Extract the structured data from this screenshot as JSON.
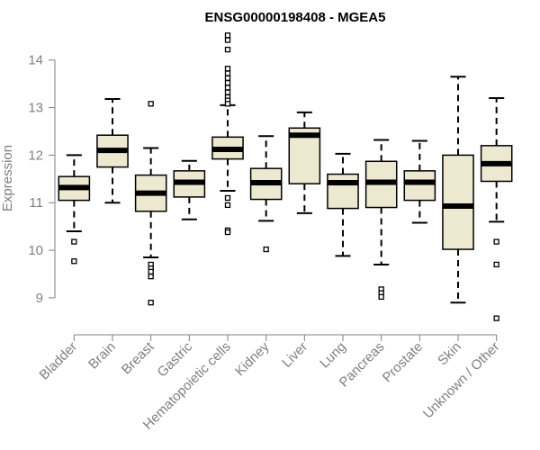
{
  "chart_data": {
    "type": "boxplot",
    "title": "ENSG00000198408 - MGEA5",
    "ylabel": "Expression",
    "xlabel": "",
    "ylim": [
      8.45,
      14.6
    ],
    "yticks": [
      9,
      10,
      11,
      12,
      13,
      14
    ],
    "grid": false,
    "box_fill": "#ede8d0",
    "axis_color": "#7f7f7f",
    "categories": [
      "Bladder",
      "Brain",
      "Breast",
      "Gastric",
      "Hematopoietic cells",
      "Kidney",
      "Liver",
      "Lung",
      "Pancreas",
      "Prostate",
      "Skin",
      "Unknown / Other"
    ],
    "boxes": [
      {
        "min": 10.4,
        "q1": 11.05,
        "median": 11.32,
        "q3": 11.55,
        "max": 12.0,
        "outliers": [
          10.18,
          9.77
        ]
      },
      {
        "min": 11.0,
        "q1": 11.75,
        "median": 12.1,
        "q3": 12.42,
        "max": 13.18,
        "outliers": []
      },
      {
        "min": 9.85,
        "q1": 10.82,
        "median": 11.2,
        "q3": 11.58,
        "max": 12.15,
        "outliers": [
          13.08,
          9.7,
          9.62,
          9.55,
          9.45,
          8.9
        ]
      },
      {
        "min": 10.65,
        "q1": 11.12,
        "median": 11.43,
        "q3": 11.67,
        "max": 11.88,
        "outliers": []
      },
      {
        "min": 11.25,
        "q1": 11.92,
        "median": 12.12,
        "q3": 12.38,
        "max": 13.05,
        "outliers": [
          14.52,
          14.42,
          14.22,
          13.82,
          13.72,
          13.62,
          13.52,
          13.42,
          13.32,
          13.22,
          13.15,
          13.08,
          11.1,
          10.95,
          10.42,
          10.38
        ]
      },
      {
        "min": 10.62,
        "q1": 11.07,
        "median": 11.42,
        "q3": 11.72,
        "max": 12.4,
        "outliers": [
          10.02
        ]
      },
      {
        "min": 10.78,
        "q1": 11.4,
        "median": 12.42,
        "q3": 12.57,
        "max": 12.9,
        "outliers": []
      },
      {
        "min": 9.88,
        "q1": 10.88,
        "median": 11.42,
        "q3": 11.6,
        "max": 12.03,
        "outliers": []
      },
      {
        "min": 9.7,
        "q1": 10.9,
        "median": 11.43,
        "q3": 11.87,
        "max": 12.32,
        "outliers": [
          9.18,
          9.1,
          9.02
        ]
      },
      {
        "min": 10.58,
        "q1": 11.05,
        "median": 11.43,
        "q3": 11.67,
        "max": 12.3,
        "outliers": []
      },
      {
        "min": 8.9,
        "q1": 10.02,
        "median": 10.93,
        "q3": 12.0,
        "max": 13.65,
        "outliers": []
      },
      {
        "min": 10.6,
        "q1": 11.45,
        "median": 11.82,
        "q3": 12.2,
        "max": 13.2,
        "outliers": [
          10.18,
          9.7,
          8.57
        ]
      }
    ]
  }
}
